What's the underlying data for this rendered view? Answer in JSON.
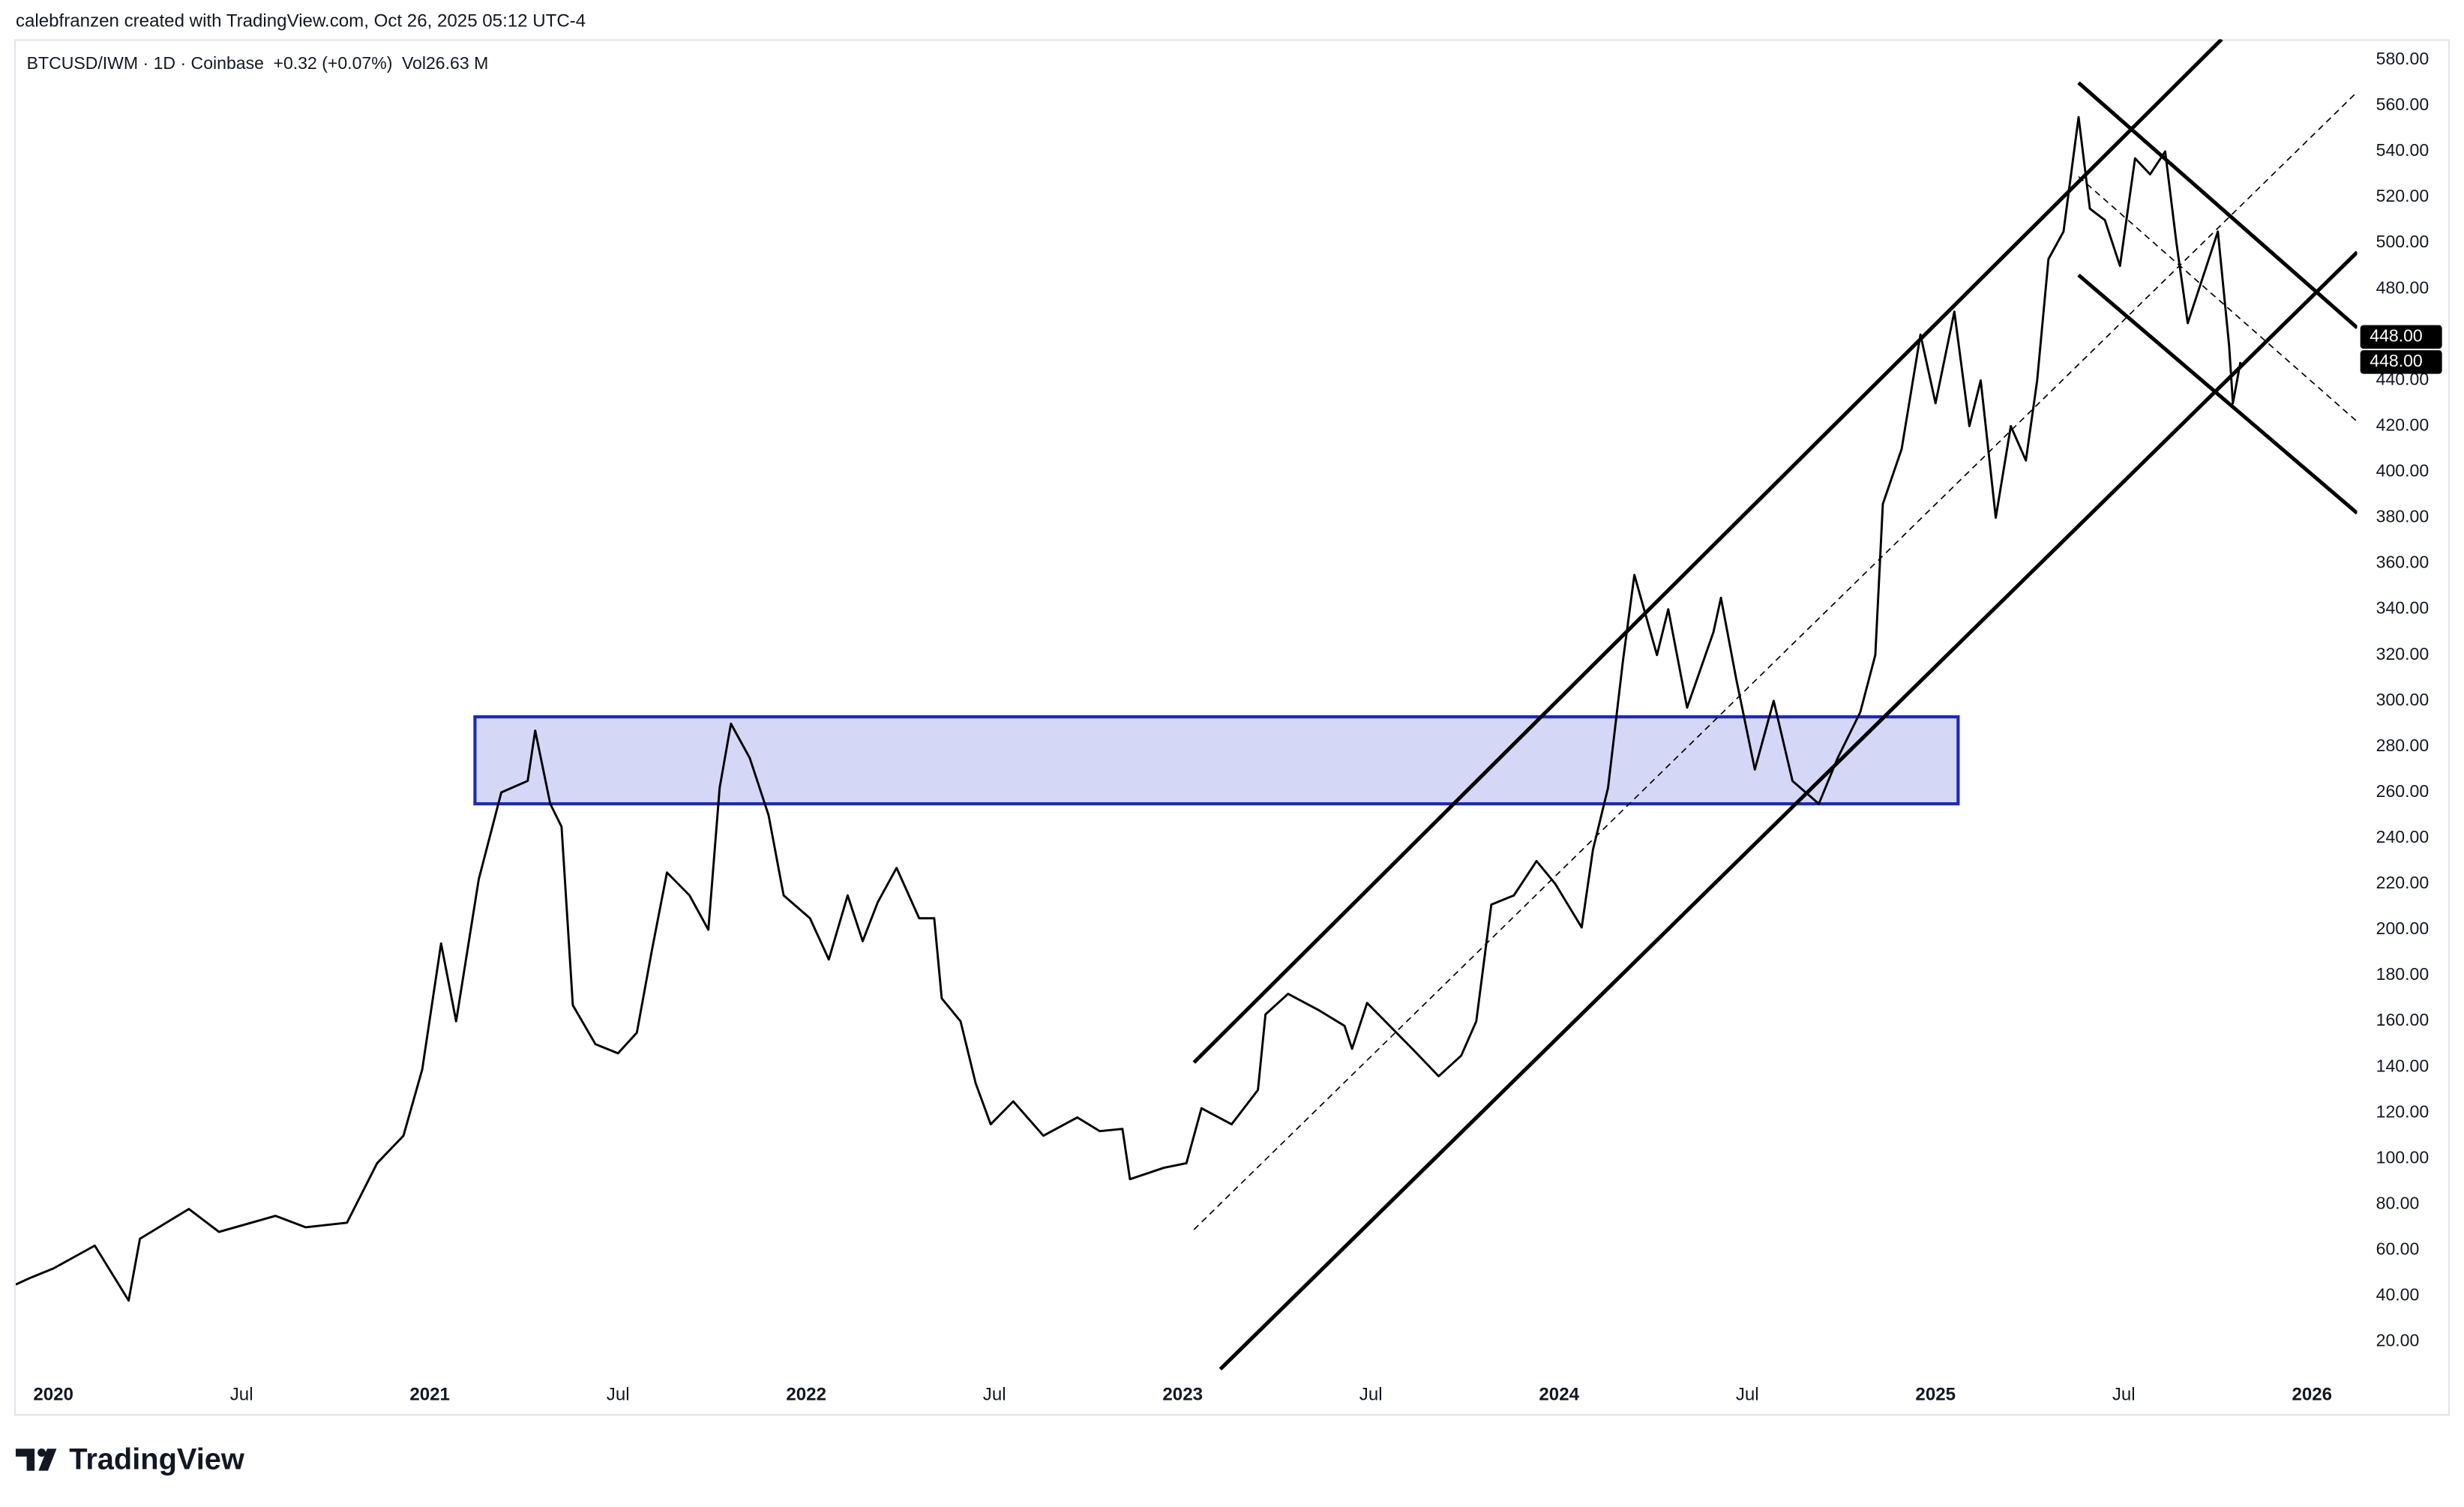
{
  "header": {
    "attribution": "calebfranzen created with TradingView.com, Oct 26, 2025 05:12 UTC-4"
  },
  "chart_data": {
    "type": "line",
    "symbol": "BTCUSD/IWM · 1D · Coinbase",
    "change": "+0.32 (+0.07%)",
    "volume": "Vol26.63 M",
    "color": "#000000",
    "x": [
      2019.9,
      2019.94,
      2020.0,
      2020.11,
      2020.2,
      2020.23,
      2020.36,
      2020.44,
      2020.59,
      2020.67,
      2020.78,
      2020.86,
      2020.93,
      2020.98,
      2021.03,
      2021.07,
      2021.13,
      2021.19,
      2021.26,
      2021.28,
      2021.32,
      2021.35,
      2021.38,
      2021.44,
      2021.5,
      2021.55,
      2021.59,
      2021.63,
      2021.69,
      2021.74,
      2021.77,
      2021.8,
      2021.85,
      2021.9,
      2021.94,
      2022.01,
      2022.06,
      2022.11,
      2022.15,
      2022.19,
      2022.24,
      2022.3,
      2022.34,
      2022.36,
      2022.41,
      2022.45,
      2022.49,
      2022.55,
      2022.63,
      2022.72,
      2022.78,
      2022.84,
      2022.86,
      2022.95,
      2023.01,
      2023.05,
      2023.13,
      2023.2,
      2023.22,
      2023.28,
      2023.36,
      2023.43,
      2023.45,
      2023.49,
      2023.55,
      2023.61,
      2023.68,
      2023.74,
      2023.78,
      2023.82,
      2023.88,
      2023.94,
      2023.99,
      2024.06,
      2024.09,
      2024.13,
      2024.17,
      2024.2,
      2024.26,
      2024.29,
      2024.34,
      2024.41,
      2024.43,
      2024.47,
      2024.52,
      2024.57,
      2024.62,
      2024.69,
      2024.74,
      2024.8,
      2024.84,
      2024.86,
      2024.91,
      2024.96,
      2025.0,
      2025.05,
      2025.09,
      2025.12,
      2025.16,
      2025.2,
      2025.24,
      2025.27,
      2025.3,
      2025.34,
      2025.38,
      2025.41,
      2025.45,
      2025.49,
      2025.53,
      2025.57,
      2025.61,
      2025.64,
      2025.67,
      2025.71,
      2025.75,
      2025.78,
      2025.79,
      2025.81
    ],
    "values": [
      45,
      48,
      52,
      62,
      38,
      65,
      78,
      68,
      75,
      70,
      72,
      98,
      110,
      139,
      194,
      160,
      222,
      260,
      265,
      287,
      255,
      245,
      167,
      150,
      146,
      155,
      191,
      225,
      215,
      200,
      262,
      290,
      275,
      250,
      215,
      205,
      187,
      215,
      195,
      212,
      227,
      205,
      205,
      170,
      160,
      133,
      115,
      125,
      110,
      118,
      112,
      113,
      91,
      96,
      98,
      122,
      115,
      130,
      163,
      172,
      165,
      158,
      148,
      168,
      158,
      148,
      136,
      145,
      160,
      211,
      215,
      230,
      220,
      201,
      235,
      262,
      318,
      355,
      320,
      340,
      297,
      330,
      345,
      310,
      270,
      300,
      265,
      255,
      275,
      295,
      320,
      386,
      410,
      460,
      430,
      470,
      420,
      440,
      380,
      420,
      405,
      440,
      493,
      505,
      555,
      515,
      510,
      490,
      537,
      530,
      540,
      500,
      465,
      485,
      505,
      455,
      430,
      448
    ],
    "xlim": [
      2019.9,
      2026.12
    ],
    "ylim": [
      7.6,
      589
    ],
    "xticks": [
      2020,
      {
        "value": 2020.5,
        "label": "Jul"
      },
      2021,
      {
        "value": 2021.5,
        "label": "Jul"
      },
      2022,
      {
        "value": 2022.5,
        "label": "Jul"
      },
      2023,
      {
        "value": 2023.5,
        "label": "Jul"
      },
      2024,
      {
        "value": 2024.5,
        "label": "Jul"
      },
      2025,
      {
        "value": 2025.5,
        "label": "Jul"
      },
      2026
    ],
    "yticks": [
      {
        "value": 20,
        "label": "20.00"
      },
      {
        "value": 40,
        "label": "40.00"
      },
      {
        "value": 60,
        "label": "60.00"
      },
      {
        "value": 80,
        "label": "80.00"
      },
      {
        "value": 100,
        "label": "100.00"
      },
      {
        "value": 120,
        "label": "120.00"
      },
      {
        "value": 140,
        "label": "140.00"
      },
      {
        "value": 160,
        "label": "160.00"
      },
      {
        "value": 180,
        "label": "180.00"
      },
      {
        "value": 200,
        "label": "200.00"
      },
      {
        "value": 220,
        "label": "220.00"
      },
      {
        "value": 240,
        "label": "240.00"
      },
      {
        "value": 260,
        "label": "260.00"
      },
      {
        "value": 280,
        "label": "280.00"
      },
      {
        "value": 300,
        "label": "300.00"
      },
      {
        "value": 320,
        "label": "320.00"
      },
      {
        "value": 340,
        "label": "340.00"
      },
      {
        "value": 360,
        "label": "360.00"
      },
      {
        "value": 380,
        "label": "380.00"
      },
      {
        "value": 400,
        "label": "400.00"
      },
      {
        "value": 420,
        "label": "420.00"
      },
      {
        "value": 440,
        "label": "440.00"
      },
      {
        "value": 460,
        "label": "460.00"
      },
      {
        "value": 480,
        "label": "480.00"
      },
      {
        "value": 500,
        "label": "500.00"
      },
      {
        "value": 520,
        "label": "520.00"
      },
      {
        "value": 540,
        "label": "540.00"
      },
      {
        "value": 560,
        "label": "560.00"
      },
      {
        "value": 580,
        "label": "580.00"
      }
    ],
    "grid": false,
    "zones": [
      {
        "x": [
          2021.12,
          2025.06
        ],
        "y": [
          255,
          293
        ],
        "fill": "#d4d7f5",
        "stroke": "#1c2ab8"
      }
    ],
    "trendlines": [
      {
        "x": [
          2023.03,
          2025.76
        ],
        "y": [
          142,
          589
        ],
        "dashed": false
      },
      {
        "x": [
          2023.1,
          2026.12
        ],
        "y": [
          8,
          496
        ],
        "dashed": false
      },
      {
        "x": [
          2023.03,
          2026.12
        ],
        "y": [
          69,
          566
        ],
        "dashed": true
      },
      {
        "x": [
          2025.38,
          2026.12
        ],
        "y": [
          570,
          463
        ],
        "dashed": false
      },
      {
        "x": [
          2025.38,
          2026.12
        ],
        "y": [
          486,
          382
        ],
        "dashed": false
      },
      {
        "x": [
          2025.38,
          2026.12
        ],
        "y": [
          529,
          422
        ],
        "dashed": true
      }
    ],
    "price_labels": [
      {
        "value": 448,
        "label": "448.00"
      },
      {
        "value": 448,
        "label": "448.00"
      }
    ]
  },
  "footer": {
    "brand": "TradingView"
  }
}
